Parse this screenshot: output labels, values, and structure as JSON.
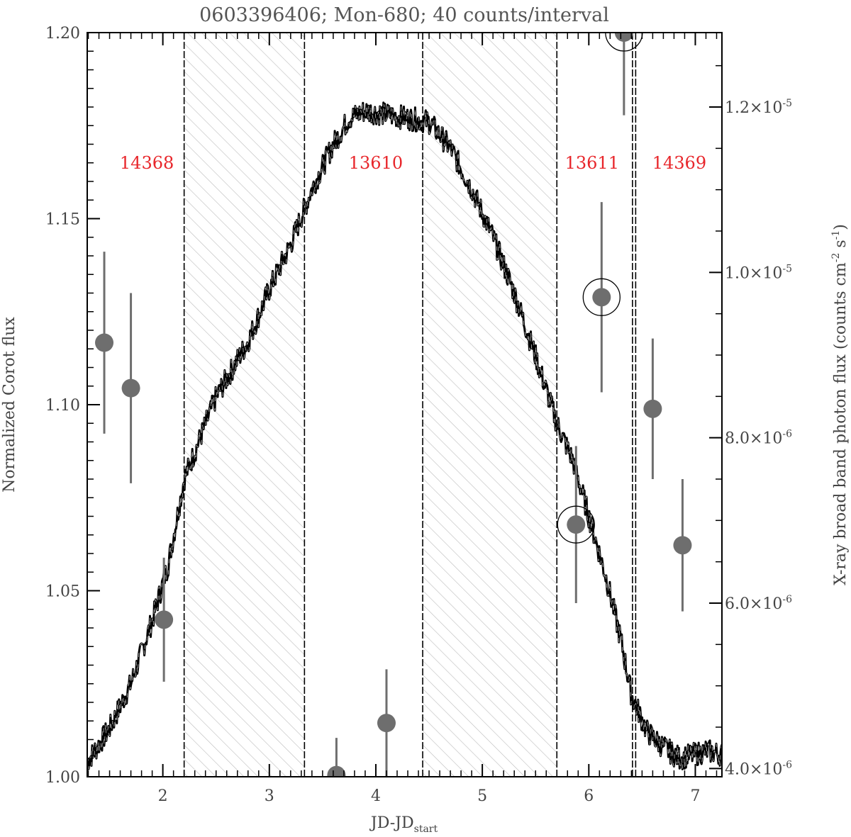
{
  "chart_data": {
    "type": "line",
    "title": "0603396406; Mon-680; 40 counts/interval",
    "xlabel": "JD-JD",
    "xlabel_sub": "start",
    "ylabel": "Normalized Corot flux",
    "y2label": "X-ray broad band photon flux (counts cm",
    "y2label_sup1": "-2",
    "y2label_mid": " s",
    "y2label_sup2": "-1",
    "y2label_end": ")",
    "xlim": [
      1.29,
      7.25
    ],
    "ylim": [
      1.0,
      1.2
    ],
    "y2lim": [
      3.9e-06,
      1.29e-05
    ],
    "x_ticks": [
      {
        "v": 2,
        "label": "2"
      },
      {
        "v": 3,
        "label": "3"
      },
      {
        "v": 4,
        "label": "4"
      },
      {
        "v": 5,
        "label": "5"
      },
      {
        "v": 6,
        "label": "6"
      },
      {
        "v": 7,
        "label": "7"
      }
    ],
    "y_ticks": [
      {
        "v": 1.0,
        "label": "1.00"
      },
      {
        "v": 1.05,
        "label": "1.05"
      },
      {
        "v": 1.1,
        "label": "1.10"
      },
      {
        "v": 1.15,
        "label": "1.15"
      },
      {
        "v": 1.2,
        "label": "1.20"
      }
    ],
    "y2_ticks": [
      {
        "v": 4e-06,
        "mant": "4.0",
        "exp": "-6"
      },
      {
        "v": 6e-06,
        "mant": "6.0",
        "exp": "-6"
      },
      {
        "v": 8e-06,
        "mant": "8.0",
        "exp": "-6"
      },
      {
        "v": 1e-05,
        "mant": "1.0",
        "exp": "-5"
      },
      {
        "v": 1.2e-05,
        "mant": "1.2",
        "exp": "-5"
      }
    ],
    "corot_lightcurve": {
      "x": [
        1.29,
        1.5,
        1.7,
        1.9,
        2.05,
        2.2,
        2.5,
        2.8,
        3.0,
        3.2,
        3.4,
        3.6,
        3.75,
        3.9,
        4.1,
        4.3,
        4.5,
        4.7,
        4.9,
        5.1,
        5.3,
        5.5,
        5.7,
        5.85,
        6.0,
        6.15,
        6.3,
        6.4,
        6.55,
        6.7,
        6.85,
        7.0,
        7.1,
        7.25
      ],
      "y": [
        1.004,
        1.013,
        1.025,
        1.042,
        1.057,
        1.08,
        1.102,
        1.117,
        1.131,
        1.143,
        1.158,
        1.17,
        1.177,
        1.179,
        1.178,
        1.177,
        1.176,
        1.169,
        1.158,
        1.145,
        1.13,
        1.113,
        1.095,
        1.085,
        1.07,
        1.055,
        1.037,
        1.022,
        1.012,
        1.008,
        1.005,
        1.006,
        1.007,
        1.006
      ]
    },
    "xray_points": [
      {
        "x": 1.45,
        "y": 9.15e-06,
        "err": 1.1e-06,
        "circled": false
      },
      {
        "x": 1.7,
        "y": 8.6e-06,
        "err": 1.15e-06,
        "circled": false
      },
      {
        "x": 2.01,
        "y": 5.8e-06,
        "err": 7.5e-07,
        "circled": false
      },
      {
        "x": 3.63,
        "y": 3.92e-06,
        "err": 4.5e-07,
        "circled": false
      },
      {
        "x": 4.1,
        "y": 4.55e-06,
        "err": 6.5e-07,
        "circled": false
      },
      {
        "x": 5.88,
        "y": 6.95e-06,
        "err": 9.5e-07,
        "circled": true
      },
      {
        "x": 6.12,
        "y": 9.7e-06,
        "err": 1.15e-06,
        "circled": true
      },
      {
        "x": 6.33,
        "y": 1.29e-05,
        "err": 1e-06,
        "circled": true
      },
      {
        "x": 6.6,
        "y": 8.35e-06,
        "err": 8.5e-07,
        "circled": false
      },
      {
        "x": 6.88,
        "y": 6.7e-06,
        "err": 8e-07,
        "circled": false
      }
    ],
    "observation_boundaries": [
      2.2,
      3.33,
      4.44,
      5.7,
      6.41,
      6.44
    ],
    "gaps": [
      [
        2.2,
        3.33
      ],
      [
        4.44,
        5.7
      ]
    ],
    "observation_labels": [
      {
        "x": 1.85,
        "text": "14368"
      },
      {
        "x": 4.0,
        "text": "13610"
      },
      {
        "x": 6.03,
        "text": "13611"
      },
      {
        "x": 6.85,
        "text": "14369"
      }
    ],
    "label_y": 1.165,
    "colors": {
      "lightcurve": "#000000",
      "xray": "#6e6e6e",
      "obs_label": "#e8262b",
      "hatch": "#bbbbbb"
    }
  }
}
